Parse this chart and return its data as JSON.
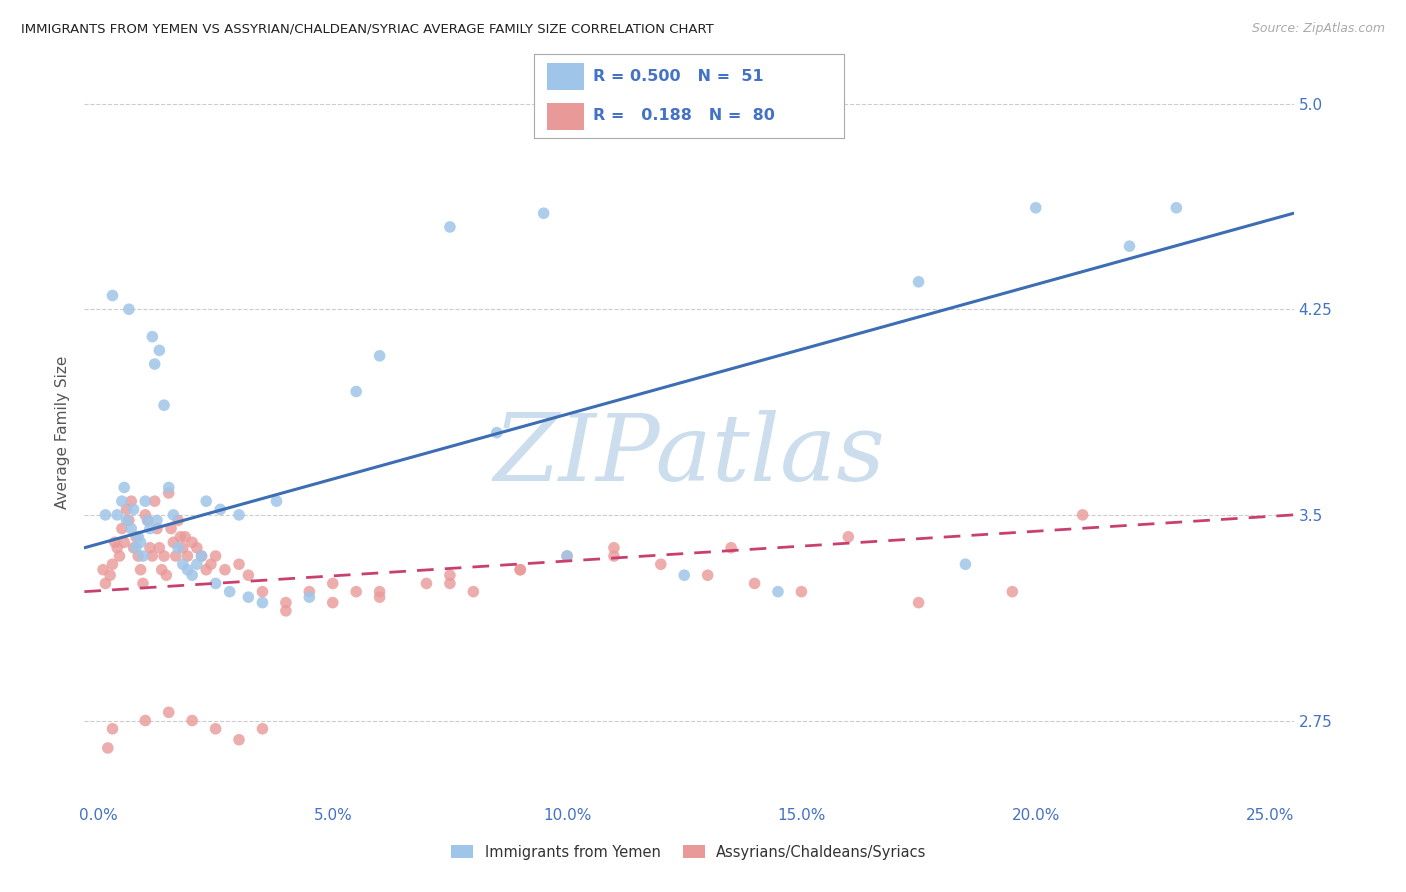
{
  "title": "IMMIGRANTS FROM YEMEN VS ASSYRIAN/CHALDEAN/SYRIAC AVERAGE FAMILY SIZE CORRELATION CHART",
  "source": "Source: ZipAtlas.com",
  "ylabel": "Average Family Size",
  "xlabel_ticks": [
    "0.0%",
    "5.0%",
    "10.0%",
    "15.0%",
    "20.0%",
    "25.0%"
  ],
  "xlabel_values": [
    0.0,
    5.0,
    10.0,
    15.0,
    20.0,
    25.0
  ],
  "yticks": [
    2.75,
    3.5,
    4.25,
    5.0
  ],
  "ylim": [
    2.45,
    5.15
  ],
  "xlim": [
    -0.3,
    25.5
  ],
  "legend_label1": "Immigrants from Yemen",
  "legend_label2": "Assyrians/Chaldeans/Syriacs",
  "r1": 0.5,
  "n1": 51,
  "r2": 0.188,
  "n2": 80,
  "color1": "#9fc5e8",
  "color2": "#ea9999",
  "line_color1": "#3d6eb4",
  "line_color2": "#c94070",
  "watermark": "ZIPatlas",
  "watermark_color": "#ccdded",
  "background_color": "#ffffff",
  "grid_color": "#cccccc",
  "title_color": "#222222",
  "tick_label_color": "#4472c4",
  "ylabel_color": "#555555",
  "blue_line_start_y": 3.38,
  "blue_line_end_y": 4.6,
  "pink_line_start_y": 3.22,
  "pink_line_end_y": 3.5,
  "blue_scatter_x": [
    0.15,
    0.3,
    0.4,
    0.5,
    0.55,
    0.6,
    0.7,
    0.75,
    0.8,
    0.85,
    0.9,
    0.95,
    1.0,
    1.05,
    1.1,
    1.15,
    1.2,
    1.3,
    1.4,
    1.5,
    1.6,
    1.7,
    1.8,
    1.9,
    2.0,
    2.1,
    2.2,
    2.5,
    2.8,
    3.0,
    3.2,
    3.5,
    4.5,
    5.5,
    7.5,
    8.5,
    9.5,
    10.0,
    12.5,
    14.5,
    17.5,
    18.5,
    20.0,
    22.0,
    23.0,
    2.3,
    2.6,
    3.8,
    6.0,
    1.25,
    0.65
  ],
  "blue_scatter_y": [
    3.5,
    4.3,
    3.5,
    3.55,
    3.6,
    3.48,
    3.45,
    3.52,
    3.38,
    3.42,
    3.4,
    3.35,
    3.55,
    3.48,
    3.45,
    4.15,
    4.05,
    4.1,
    3.9,
    3.6,
    3.5,
    3.38,
    3.32,
    3.3,
    3.28,
    3.32,
    3.35,
    3.25,
    3.22,
    3.5,
    3.2,
    3.18,
    3.2,
    3.95,
    4.55,
    3.8,
    4.6,
    3.35,
    3.28,
    3.22,
    4.35,
    3.32,
    4.62,
    4.48,
    4.62,
    3.55,
    3.52,
    3.55,
    4.08,
    3.48,
    4.25
  ],
  "pink_scatter_x": [
    0.1,
    0.15,
    0.2,
    0.25,
    0.3,
    0.35,
    0.4,
    0.45,
    0.5,
    0.55,
    0.6,
    0.65,
    0.7,
    0.75,
    0.8,
    0.85,
    0.9,
    0.95,
    1.0,
    1.05,
    1.1,
    1.15,
    1.2,
    1.25,
    1.3,
    1.35,
    1.4,
    1.45,
    1.5,
    1.55,
    1.6,
    1.65,
    1.7,
    1.75,
    1.8,
    1.85,
    1.9,
    2.0,
    2.1,
    2.2,
    2.3,
    2.4,
    2.5,
    2.7,
    3.0,
    3.2,
    3.5,
    4.0,
    4.5,
    5.0,
    5.5,
    6.0,
    7.0,
    7.5,
    8.0,
    9.0,
    10.0,
    11.0,
    12.0,
    13.0,
    14.0,
    15.0,
    17.5,
    19.5,
    21.0,
    0.3,
    1.0,
    1.5,
    2.0,
    2.5,
    3.0,
    3.5,
    4.0,
    5.0,
    6.0,
    7.5,
    9.0,
    11.0,
    13.5,
    16.0
  ],
  "pink_scatter_y": [
    3.3,
    3.25,
    2.65,
    3.28,
    3.32,
    3.4,
    3.38,
    3.35,
    3.45,
    3.4,
    3.52,
    3.48,
    3.55,
    3.38,
    3.42,
    3.35,
    3.3,
    3.25,
    3.5,
    3.48,
    3.38,
    3.35,
    3.55,
    3.45,
    3.38,
    3.3,
    3.35,
    3.28,
    3.58,
    3.45,
    3.4,
    3.35,
    3.48,
    3.42,
    3.38,
    3.42,
    3.35,
    3.4,
    3.38,
    3.35,
    3.3,
    3.32,
    3.35,
    3.3,
    3.32,
    3.28,
    3.22,
    3.18,
    3.22,
    3.25,
    3.22,
    3.2,
    3.25,
    3.28,
    3.22,
    3.3,
    3.35,
    3.38,
    3.32,
    3.28,
    3.25,
    3.22,
    3.18,
    3.22,
    3.5,
    2.72,
    2.75,
    2.78,
    2.75,
    2.72,
    2.68,
    2.72,
    3.15,
    3.18,
    3.22,
    3.25,
    3.3,
    3.35,
    3.38,
    3.42
  ]
}
